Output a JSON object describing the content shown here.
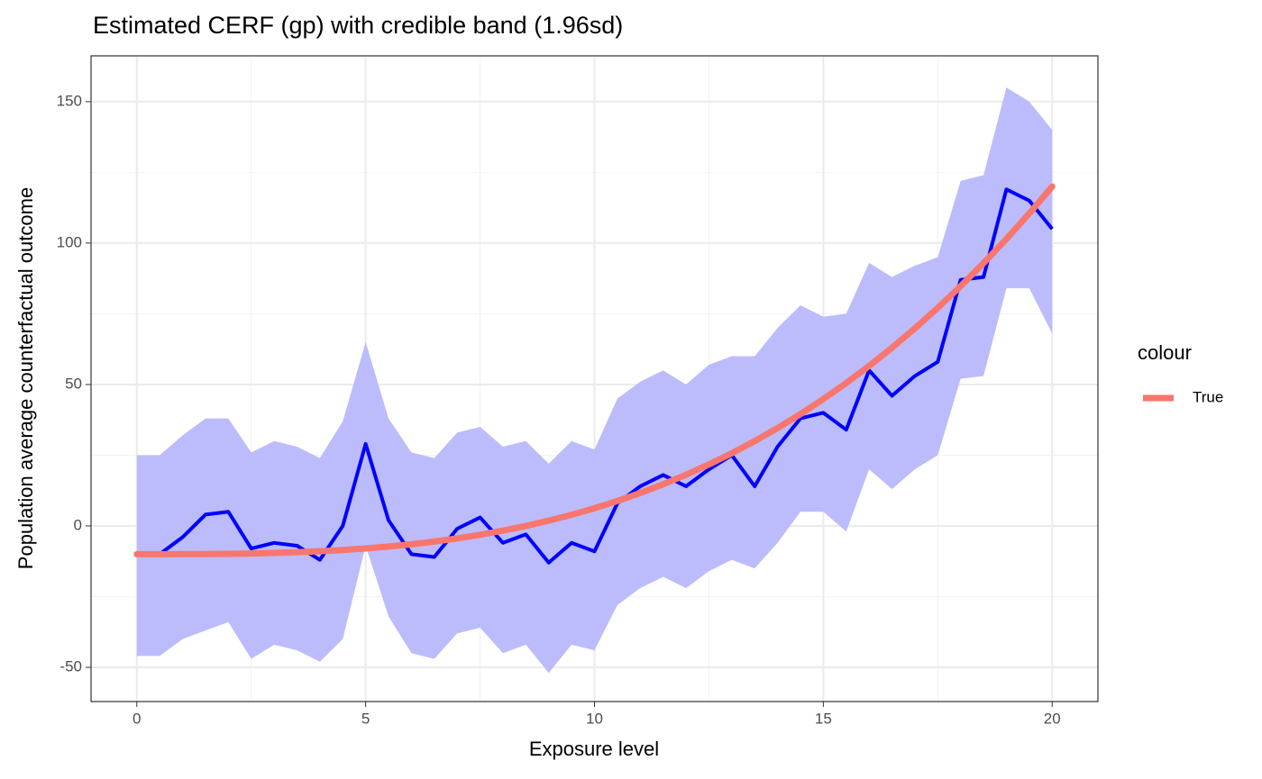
{
  "chart_data": {
    "type": "line",
    "title": "Estimated CERF (gp) with credible band (1.96sd)",
    "x_label": "Exposure level",
    "y_label": "Population average counterfactual outcome",
    "legend_title": "colour",
    "legend_position": "right",
    "grid": true,
    "xlim": [
      -1,
      21
    ],
    "ylim": [
      -62.1,
      166.2
    ],
    "xticks": [
      0,
      5,
      10,
      15,
      20
    ],
    "yticks": [
      -50,
      0,
      50,
      100,
      150
    ],
    "x_minor_ticks": [
      2.5,
      7.5,
      12.5,
      17.5
    ],
    "y_minor_ticks": [
      -25,
      25,
      75,
      125
    ],
    "x": [
      0,
      0.5,
      1,
      1.5,
      2,
      2.5,
      3,
      3.5,
      4,
      4.5,
      5,
      5.5,
      6,
      6.5,
      7,
      7.5,
      8,
      8.5,
      9,
      9.5,
      10,
      10.5,
      11,
      11.5,
      12,
      12.5,
      13,
      13.5,
      14,
      14.5,
      15,
      15.5,
      16,
      16.5,
      17,
      17.5,
      18,
      18.5,
      19,
      19.5,
      20
    ],
    "band": {
      "color": "#bcbcfc",
      "upper": [
        25,
        25,
        32,
        38,
        38,
        26,
        30,
        28,
        24,
        37,
        65,
        38,
        26,
        24,
        33,
        35,
        28,
        30,
        22,
        30,
        27,
        45,
        51,
        55,
        50,
        57,
        60,
        60,
        70,
        78,
        74,
        75,
        93,
        88,
        92,
        95,
        122,
        124,
        155,
        150,
        140
      ],
      "lower": [
        -46,
        -46,
        -40,
        -37,
        -34,
        -47,
        -42,
        -44,
        -48,
        -40,
        -7,
        -32,
        -45,
        -47,
        -38,
        -36,
        -45,
        -42,
        -52,
        -42,
        -44,
        -28,
        -22,
        -18,
        -22,
        -16,
        -12,
        -15,
        -6,
        5,
        5,
        -2,
        20,
        13,
        20,
        25,
        52,
        53,
        84,
        84,
        68
      ]
    },
    "estimate": {
      "color": "#0000ff",
      "values": [
        -10,
        -10,
        -4,
        4,
        5,
        -8,
        -6,
        -7,
        -12,
        0,
        29,
        2,
        -10,
        -11,
        -1,
        3,
        -6,
        -3,
        -13,
        -6,
        -9,
        8,
        14,
        18,
        14,
        20,
        25,
        14,
        28,
        38,
        40,
        34,
        55,
        46,
        53,
        58,
        87,
        88,
        119,
        115,
        105
      ]
    },
    "series": [
      {
        "name": "True",
        "color": "#f8766d",
        "values": [
          -10,
          -10,
          -9.98,
          -9.95,
          -9.87,
          -9.75,
          -9.56,
          -9.3,
          -8.96,
          -8.52,
          -7.97,
          -7.3,
          -6.49,
          -5.54,
          -4.43,
          -3.14,
          -1.68,
          -0.02,
          1.85,
          3.93,
          6.25,
          8.81,
          11.63,
          14.71,
          18.08,
          21.74,
          25.7,
          29.98,
          34.59,
          39.54,
          44.84,
          50.51,
          56.56,
          63,
          69.84,
          77.09,
          84.77,
          92.89,
          101.46,
          110.49,
          120
        ]
      }
    ]
  }
}
